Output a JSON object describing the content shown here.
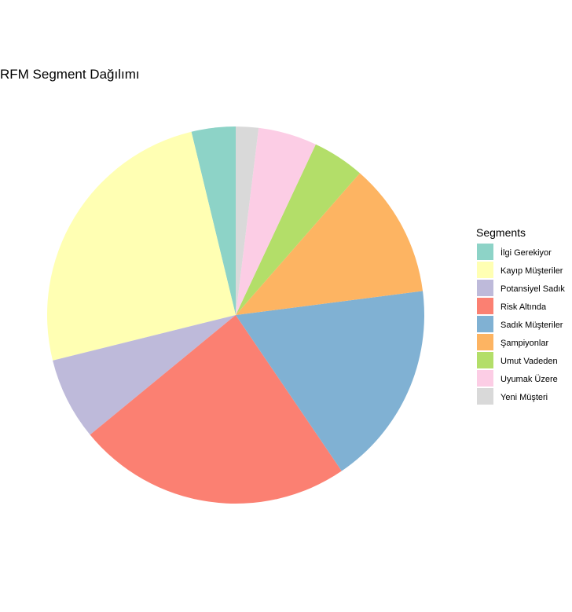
{
  "chart_data": {
    "type": "pie",
    "title": "RFM Segment Dağılımı",
    "legend_title": "Segments",
    "legend_position": "right",
    "direction": "counter-clockwise",
    "start": "top",
    "slices": [
      {
        "label": "İlgi Gerekiyor",
        "value": 3.9,
        "color": "#8DD3C7"
      },
      {
        "label": "Kayıp Müşteriler",
        "value": 25.9,
        "color": "#FFFFB3"
      },
      {
        "label": "Potansiyel Sadık",
        "value": 7.3,
        "color": "#BEBADA"
      },
      {
        "label": "Risk Altında",
        "value": 24.3,
        "color": "#FB8072"
      },
      {
        "label": "Sadık Müşteriler",
        "value": 18.1,
        "color": "#80B1D3"
      },
      {
        "label": "Şampiyonlar",
        "value": 11.9,
        "color": "#FDB462"
      },
      {
        "label": "Umut Vadeden",
        "value": 4.6,
        "color": "#B3DE69"
      },
      {
        "label": "Uyumak Üzere",
        "value": 5.2,
        "color": "#FCCDE5"
      },
      {
        "label": "Yeni Müşteri",
        "value": 2.0,
        "color": "#D9D9D9"
      }
    ]
  }
}
